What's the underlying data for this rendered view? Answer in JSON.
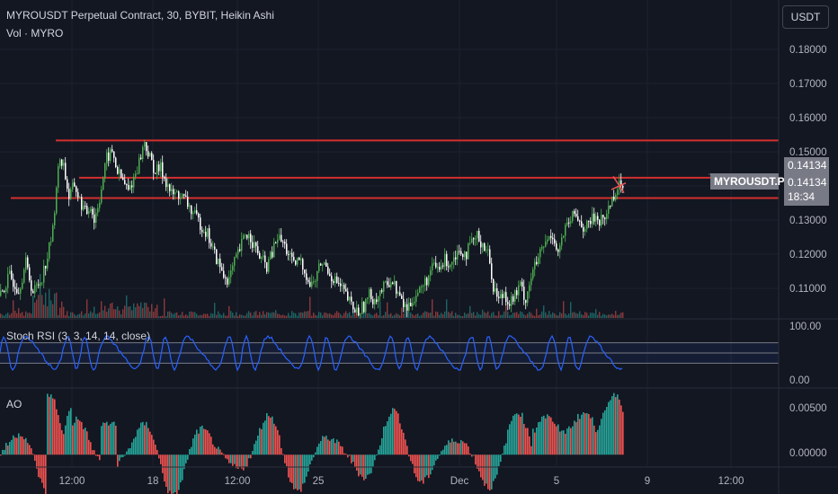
{
  "header": {
    "title": "MYROUSDT Perpetual Contract, 30, BYBIT, Heikin Ashi",
    "volume_label": "Vol · MYRO"
  },
  "currency_button": "USDT",
  "price_axis": {
    "ticks": [
      "0.18000",
      "0.17000",
      "0.16000",
      "0.15000",
      "0.13000",
      "0.12000",
      "0.11000"
    ]
  },
  "tags": {
    "level_price": "0.14134",
    "symbol": "MYROUSDT.P",
    "last_price": "0.14134",
    "countdown": "18:34"
  },
  "stoch": {
    "label": "Stoch RSI (3, 3, 14, 14, close)",
    "ticks": [
      "100.00",
      "0.00"
    ]
  },
  "ao": {
    "label": "AO",
    "ticks": [
      "0.00500",
      "0.00000"
    ]
  },
  "time_axis": {
    "labels": [
      "12:00",
      "18",
      "12:00",
      "25",
      "Dec",
      "5",
      "9",
      "12:00"
    ]
  },
  "colors": {
    "background": "#131722",
    "up": "#26a69a",
    "down": "#ef5350",
    "candle_up": "#4caf50",
    "level_line": "#d32f2f",
    "stoch_line": "#2962ff",
    "tag_gray": "#787b86"
  },
  "chart_data": {
    "type": "candlestick",
    "levels": [
      0.1555,
      0.1441,
      0.1379
    ],
    "price_ylim": [
      0.1012,
      0.1875
    ],
    "close_path": [
      [
        0,
        0.108
      ],
      [
        10,
        0.114
      ],
      [
        20,
        0.11
      ],
      [
        28,
        0.118
      ],
      [
        36,
        0.109
      ],
      [
        45,
        0.113
      ],
      [
        52,
        0.12
      ],
      [
        58,
        0.128
      ],
      [
        62,
        0.142
      ],
      [
        66,
        0.15
      ],
      [
        70,
        0.148
      ],
      [
        76,
        0.138
      ],
      [
        82,
        0.142
      ],
      [
        88,
        0.137
      ],
      [
        95,
        0.133
      ],
      [
        100,
        0.136
      ],
      [
        104,
        0.131
      ],
      [
        110,
        0.138
      ],
      [
        114,
        0.144
      ],
      [
        118,
        0.15
      ],
      [
        124,
        0.152
      ],
      [
        130,
        0.146
      ],
      [
        136,
        0.143
      ],
      [
        142,
        0.14
      ],
      [
        148,
        0.144
      ],
      [
        154,
        0.149
      ],
      [
        160,
        0.155
      ],
      [
        166,
        0.15
      ],
      [
        172,
        0.146
      ],
      [
        178,
        0.147
      ],
      [
        184,
        0.143
      ],
      [
        190,
        0.139
      ],
      [
        198,
        0.139
      ],
      [
        206,
        0.137
      ],
      [
        214,
        0.133
      ],
      [
        222,
        0.13
      ],
      [
        230,
        0.127
      ],
      [
        236,
        0.122
      ],
      [
        242,
        0.118
      ],
      [
        248,
        0.114
      ],
      [
        254,
        0.113
      ],
      [
        260,
        0.118
      ],
      [
        266,
        0.122
      ],
      [
        272,
        0.127
      ],
      [
        278,
        0.126
      ],
      [
        284,
        0.122
      ],
      [
        290,
        0.119
      ],
      [
        296,
        0.117
      ],
      [
        302,
        0.121
      ],
      [
        308,
        0.126
      ],
      [
        314,
        0.124
      ],
      [
        320,
        0.121
      ],
      [
        326,
        0.117
      ],
      [
        332,
        0.119
      ],
      [
        338,
        0.116
      ],
      [
        344,
        0.111
      ],
      [
        350,
        0.113
      ],
      [
        356,
        0.118
      ],
      [
        362,
        0.117
      ],
      [
        368,
        0.114
      ],
      [
        374,
        0.112
      ],
      [
        380,
        0.11
      ],
      [
        386,
        0.107
      ],
      [
        392,
        0.104
      ],
      [
        398,
        0.103
      ],
      [
        404,
        0.105
      ],
      [
        410,
        0.108
      ],
      [
        416,
        0.107
      ],
      [
        422,
        0.109
      ],
      [
        428,
        0.111
      ],
      [
        434,
        0.113
      ],
      [
        440,
        0.11
      ],
      [
        446,
        0.106
      ],
      [
        452,
        0.104
      ],
      [
        458,
        0.107
      ],
      [
        464,
        0.109
      ],
      [
        470,
        0.111
      ],
      [
        476,
        0.114
      ],
      [
        482,
        0.117
      ],
      [
        488,
        0.116
      ],
      [
        494,
        0.119
      ],
      [
        500,
        0.118
      ],
      [
        506,
        0.121
      ],
      [
        512,
        0.122
      ],
      [
        518,
        0.121
      ],
      [
        524,
        0.124
      ],
      [
        530,
        0.126
      ],
      [
        536,
        0.124
      ],
      [
        542,
        0.121
      ],
      [
        548,
        0.111
      ],
      [
        554,
        0.107
      ],
      [
        560,
        0.109
      ],
      [
        566,
        0.106
      ],
      [
        572,
        0.108
      ],
      [
        578,
        0.111
      ],
      [
        584,
        0.107
      ],
      [
        590,
        0.114
      ],
      [
        596,
        0.118
      ],
      [
        602,
        0.122
      ],
      [
        608,
        0.125
      ],
      [
        614,
        0.127
      ],
      [
        620,
        0.121
      ],
      [
        626,
        0.127
      ],
      [
        632,
        0.13
      ],
      [
        638,
        0.133
      ],
      [
        644,
        0.131
      ],
      [
        650,
        0.128
      ],
      [
        656,
        0.131
      ],
      [
        662,
        0.132
      ],
      [
        668,
        0.131
      ],
      [
        674,
        0.133
      ],
      [
        680,
        0.138
      ],
      [
        686,
        0.141
      ],
      [
        692,
        0.1425
      ]
    ],
    "stoch_range": [
      0,
      100
    ],
    "stoch_bands": [
      80,
      50,
      20
    ],
    "ao_ylim": [
      -0.0012,
      0.0063
    ]
  }
}
